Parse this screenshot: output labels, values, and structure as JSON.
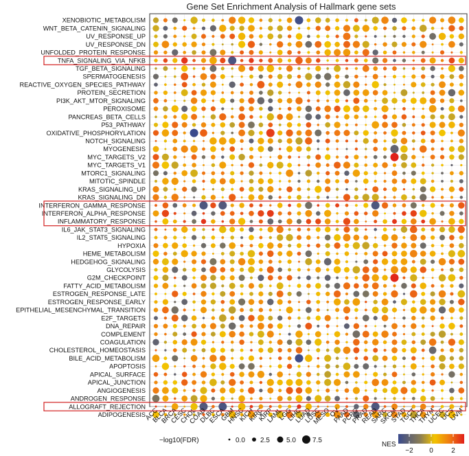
{
  "chart_data": {
    "type": "scatter",
    "title": "Gene Set Enrichment Analysis of Hallmark gene sets",
    "xlabel": "",
    "ylabel": "",
    "cancer_types": [
      "ACC",
      "BLCA",
      "BRCA",
      "CESC",
      "CHOL",
      "COAD",
      "DLBC",
      "ESCA",
      "GBM",
      "HNSC",
      "KICH",
      "KIRC",
      "KIRP",
      "LAML",
      "LGG",
      "LIHC",
      "LUAD",
      "LUSC",
      "MESO",
      "OV",
      "PAAD",
      "PCPG",
      "PRAD",
      "READ",
      "SARC",
      "SKCM",
      "STAD",
      "TGCT",
      "THCA",
      "THYM",
      "UCEC",
      "UCS",
      "UVM"
    ],
    "gene_sets": [
      "XENOBIOTIC_METABOLISM",
      "WNT_BETA_CATENIN_SIGNALING",
      "UV_RESPONSE_UP",
      "UV_RESPONSE_DN",
      "UNFOLDED_PROTEIN_RESPONSE",
      "TNFA_SIGNALING_VIA_NFKB",
      "TGF_BETA_SIGNALING",
      "SPERMATOGENESIS",
      "REACTIVE_OXYGEN_SPECIES_PATHWAY",
      "PROTEIN_SECRETION",
      "PI3K_AKT_MTOR_SIGNALING",
      "PEROXISOME",
      "PANCREAS_BETA_CELLS",
      "P53_PATHWAY",
      "OXIDATIVE_PHOSPHORYLATION",
      "NOTCH_SIGNALING",
      "MYOGENESIS",
      "MYC_TARGETS_V2",
      "MYC_TARGETS_V1",
      "MTORC1_SIGNALING",
      "MITOTIC_SPINDLE",
      "KRAS_SIGNALING_UP",
      "KRAS_SIGNALING_DN",
      "INTERFERON_GAMMA_RESPONSE",
      "INTERFERON_ALPHA_RESPONSE",
      "INFLAMMATORY_RESPONSE",
      "IL6_JAK_STAT3_SIGNALING",
      "IL2_STAT5_SIGNALING",
      "HYPOXIA",
      "HEME_METABOLISM",
      "HEDGEHOG_SIGNALING",
      "GLYCOLYSIS",
      "G2M_CHECKPOINT",
      "FATTY_ACID_METABOLISM",
      "ESTROGEN_RESPONSE_LATE",
      "ESTROGEN_RESPONSE_EARLY",
      "EPITHELIAL_MESENCHYMAL_TRANSITION",
      "E2F_TARGETS",
      "DNA_REPAIR",
      "COMPLEMENT",
      "COAGULATION",
      "CHOLESTEROL_HOMEOSTASIS",
      "BILE_ACID_METABOLISM",
      "APOPTOSIS",
      "APICAL_SURFACE",
      "APICAL_JUNCTION",
      "ANGIOGENESIS",
      "ANDROGEN_RESPONSE",
      "ALLOGRAFT_REJECTION",
      "ADIPOGENESIS"
    ],
    "highlighted_gene_sets": [
      "TNFA_SIGNALING_VIA_NFKB",
      "INTERFERON_GAMMA_RESPONSE",
      "INTERFERON_ALPHA_RESPONSE",
      "INFLAMMATORY_RESPONSE",
      "ALLOGRAFT_REJECTION"
    ],
    "size_legend": {
      "title": "−log10(FDR)",
      "values": [
        0.0,
        2.5,
        5.0,
        7.5
      ],
      "labels": [
        "0.0",
        "2.5",
        "5.0",
        "7.5"
      ]
    },
    "color_legend": {
      "title": "NES",
      "range": [
        -3,
        3
      ],
      "ticks": [
        -2,
        0,
        2
      ],
      "tick_labels": [
        "−2",
        "0",
        "2"
      ],
      "low_color": "#3a4a8c",
      "mid_color": "#f2c300",
      "high_color": "#e0201a"
    },
    "nes_overrides": [
      {
        "set": "TNFA_SIGNALING_VIA_NFKB",
        "type": "GBM",
        "nes": -2.6
      },
      {
        "set": "OXIDATIVE_PHOSPHORYLATION",
        "type": "CHOL",
        "nes": -3.0
      },
      {
        "set": "XENOBIOTIC_METABOLISM",
        "type": "LIHC",
        "nes": -2.8
      },
      {
        "set": "BILE_ACID_METABOLISM",
        "type": "LIHC",
        "nes": -2.9
      },
      {
        "set": "MYOGENESIS",
        "type": "SKCM",
        "nes": -2.0
      },
      {
        "set": "MYC_TARGETS_V2",
        "type": "SKCM",
        "nes": 3.0
      },
      {
        "set": "G2M_CHECKPOINT",
        "type": "SKCM",
        "nes": 2.9
      },
      {
        "set": "OXIDATIVE_PHOSPHORYLATION",
        "type": "KIRP",
        "nes": 2.6
      },
      {
        "set": "INTERFERON_GAMMA_RESPONSE",
        "type": "COAD",
        "nes": -2.5
      },
      {
        "set": "INTERFERON_GAMMA_RESPONSE",
        "type": "ESCA",
        "nes": -2.4
      },
      {
        "set": "INTERFERON_GAMMA_RESPONSE",
        "type": "READ",
        "nes": -2.5
      },
      {
        "set": "ALLOGRAFT_REJECTION",
        "type": "COAD",
        "nes": -2.4
      },
      {
        "set": "ALLOGRAFT_REJECTION",
        "type": "ESCA",
        "nes": -2.6
      },
      {
        "set": "ALLOGRAFT_REJECTION",
        "type": "READ",
        "nes": -2.5
      }
    ]
  }
}
